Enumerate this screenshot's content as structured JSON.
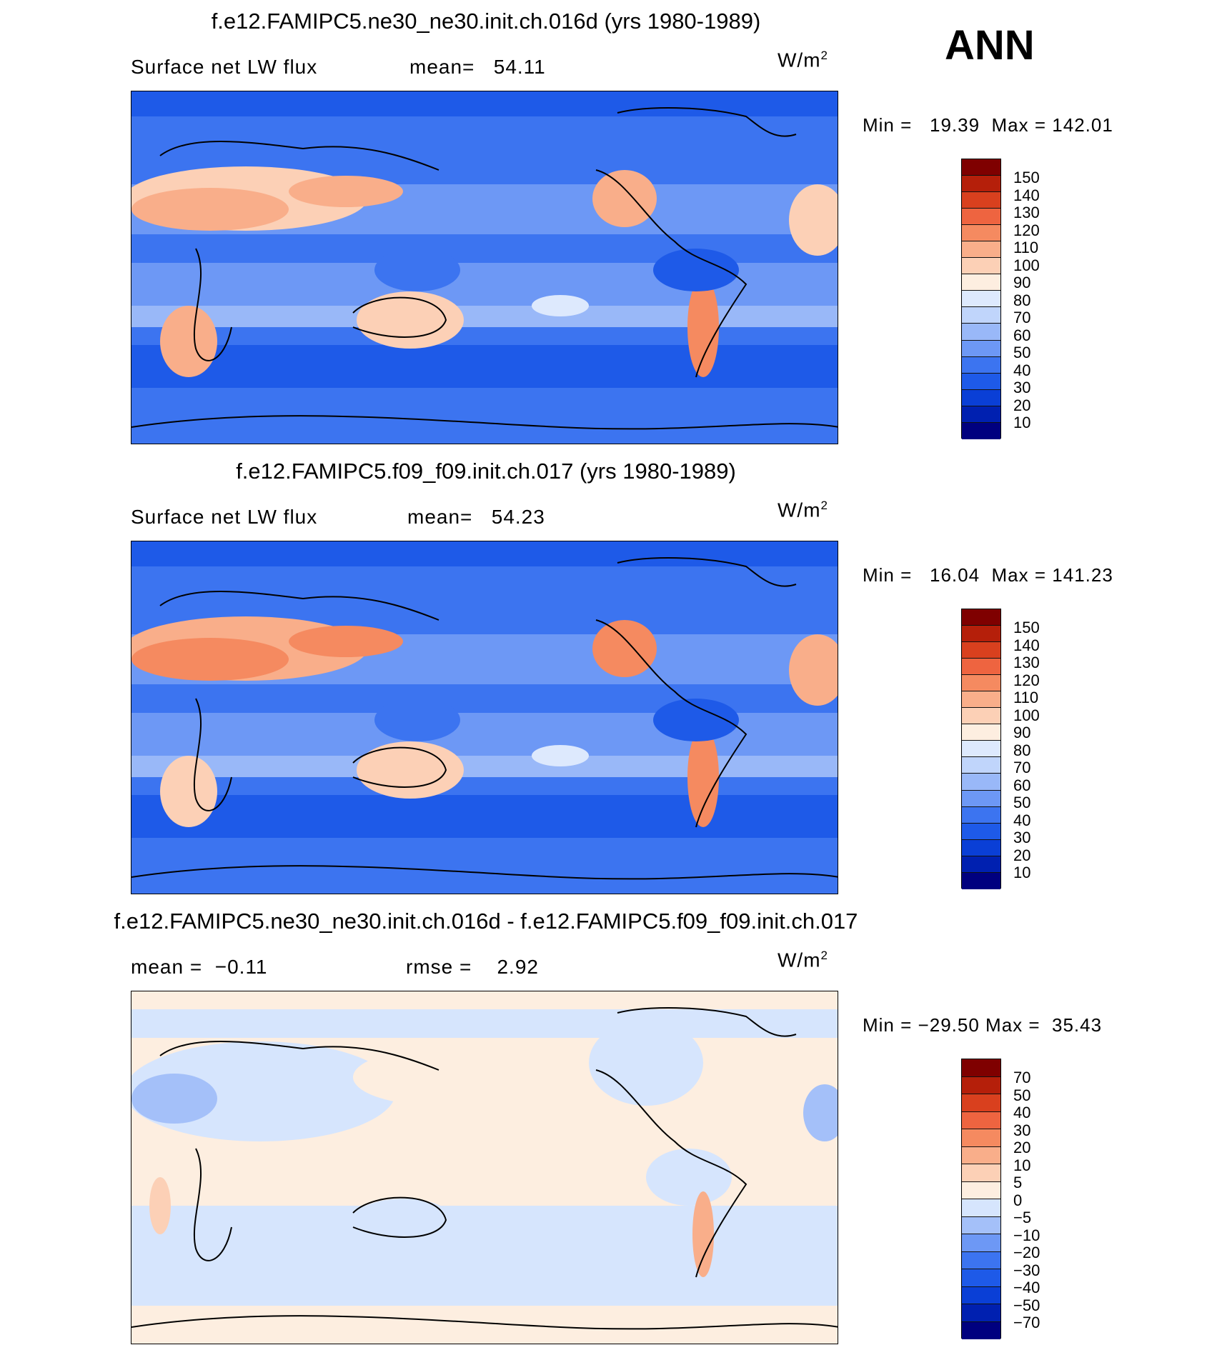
{
  "season": "ANN",
  "colors": {
    "abs": [
      "#00007f",
      "#0020b0",
      "#0a3fd6",
      "#1e5ae8",
      "#3c74f0",
      "#6d98f5",
      "#99b8f8",
      "#c0d5fb",
      "#dde9fd",
      "#fdeee0",
      "#fcd0b6",
      "#f9ae8a",
      "#f58a60",
      "#ee6440",
      "#d9401e",
      "#b51f0a",
      "#7f0000"
    ],
    "diff": [
      "#00007f",
      "#0020b0",
      "#0a3fd6",
      "#1e5ae8",
      "#3c74f0",
      "#6d98f5",
      "#a4c0f9",
      "#d6e5fd",
      "#fdeee0",
      "#fcd0b6",
      "#f9ae8a",
      "#f58a60",
      "#ee6440",
      "#d9401e",
      "#b51f0a",
      "#7f0000"
    ]
  },
  "panels": [
    {
      "title": "f.e12.FAMIPC5.ne30_ne30.init.ch.016d (yrs 1980-1989)",
      "variable": "Surface net LW flux",
      "stat1": "mean=",
      "stat1_value": "54.11",
      "units": "W/m",
      "units_exp": "2",
      "min_label": "Min =",
      "min_value": "19.39",
      "max_label": "Max =",
      "max_value": "142.01",
      "colorbar_labels": [
        "150",
        "140",
        "130",
        "120",
        "110",
        "100",
        "90",
        "80",
        "70",
        "60",
        "50",
        "40",
        "30",
        "20",
        "10"
      ]
    },
    {
      "title": "f.e12.FAMIPC5.f09_f09.init.ch.017 (yrs 1980-1989)",
      "variable": "Surface net LW flux",
      "stat1": "mean=",
      "stat1_value": "54.23",
      "units": "W/m",
      "units_exp": "2",
      "min_label": "Min =",
      "min_value": "16.04",
      "max_label": "Max =",
      "max_value": "141.23",
      "colorbar_labels": [
        "150",
        "140",
        "130",
        "120",
        "110",
        "100",
        "90",
        "80",
        "70",
        "60",
        "50",
        "40",
        "30",
        "20",
        "10"
      ]
    },
    {
      "title": "f.e12.FAMIPC5.ne30_ne30.init.ch.016d - f.e12.FAMIPC5.f09_f09.init.ch.017",
      "stat1": "mean =",
      "stat1_value": "−0.11",
      "stat2": "rmse =",
      "stat2_value": "2.92",
      "units": "W/m",
      "units_exp": "2",
      "min_label": "Min =",
      "min_value": "−29.50",
      "max_label": "Max =",
      "max_value": "35.43",
      "colorbar_labels": [
        "70",
        "50",
        "40",
        "30",
        "20",
        "10",
        "5",
        "0",
        "−5",
        "−10",
        "−20",
        "−30",
        "−40",
        "−50",
        "−70"
      ]
    }
  ]
}
